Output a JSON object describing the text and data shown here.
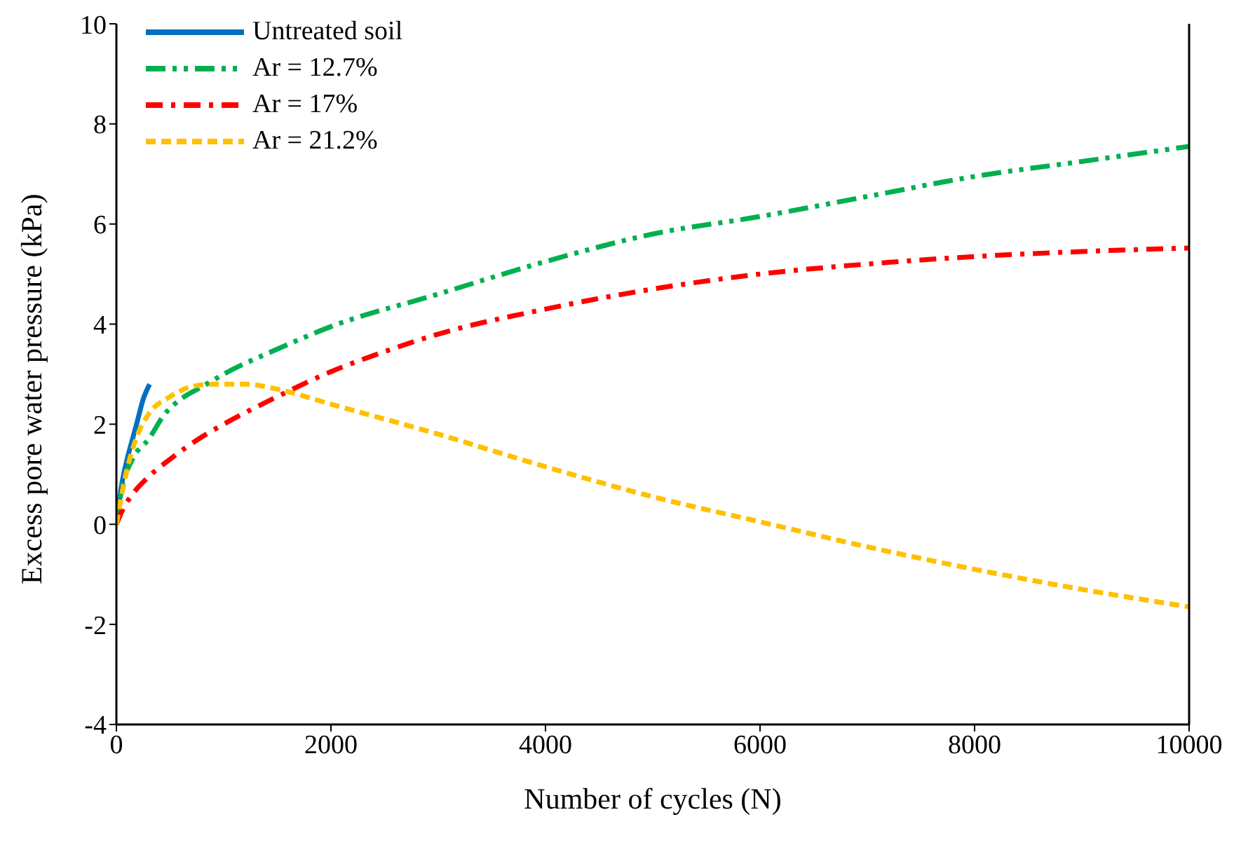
{
  "chart_data": {
    "type": "line",
    "xlabel": "Number of cycles (N)",
    "ylabel": "Excess pore water pressure (kPa)",
    "xlim": [
      0,
      10000
    ],
    "xticks": [
      0,
      2000,
      4000,
      6000,
      8000,
      10000
    ],
    "ylim": [
      -4,
      10
    ],
    "yticks": [
      -4,
      -2,
      0,
      2,
      4,
      6,
      8,
      10
    ],
    "grid": false,
    "legend": "top left",
    "marker": "none",
    "series": [
      {
        "name": "Untreated soil",
        "color": "#0070c0",
        "line_style": "solid",
        "x": [
          0,
          50,
          100,
          150,
          200,
          250,
          310
        ],
        "values": [
          0,
          0.8,
          1.3,
          1.7,
          2.1,
          2.5,
          2.8
        ]
      },
      {
        "name": "Ar = 12.7%",
        "color": "#00b050",
        "line_style": "dashed",
        "x": [
          0,
          50,
          150,
          300,
          450,
          600,
          800,
          1000,
          1500,
          2000,
          3000,
          4000,
          5000,
          6000,
          7000,
          8000,
          9000,
          10000
        ],
        "values": [
          0,
          0.7,
          1.3,
          1.7,
          2.2,
          2.5,
          2.75,
          3.0,
          3.5,
          3.95,
          4.6,
          5.25,
          5.8,
          6.15,
          6.55,
          6.95,
          7.25,
          7.55
        ]
      },
      {
        "name": "Ar = 17%",
        "color": "#ff0000",
        "line_style": "dashed",
        "x": [
          0,
          60,
          150,
          300,
          500,
          800,
          1000,
          1500,
          2000,
          2500,
          3000,
          4000,
          5000,
          6000,
          7000,
          8000,
          9000,
          10000
        ],
        "values": [
          0,
          0.3,
          0.6,
          0.95,
          1.3,
          1.75,
          2.0,
          2.55,
          3.05,
          3.45,
          3.8,
          4.3,
          4.7,
          5.0,
          5.2,
          5.35,
          5.45,
          5.52
        ]
      },
      {
        "name": "Ar = 21.2%",
        "color": "#ffc000",
        "line_style": "dashed",
        "x": [
          0,
          50,
          100,
          200,
          300,
          500,
          700,
          900,
          1200,
          1500,
          2000,
          3000,
          4000,
          5000,
          6000,
          7000,
          8000,
          9000,
          10000
        ],
        "values": [
          0,
          0.6,
          1.1,
          1.8,
          2.2,
          2.55,
          2.75,
          2.8,
          2.8,
          2.7,
          2.4,
          1.8,
          1.15,
          0.55,
          0.05,
          -0.45,
          -0.9,
          -1.3,
          -1.65
        ]
      }
    ]
  }
}
